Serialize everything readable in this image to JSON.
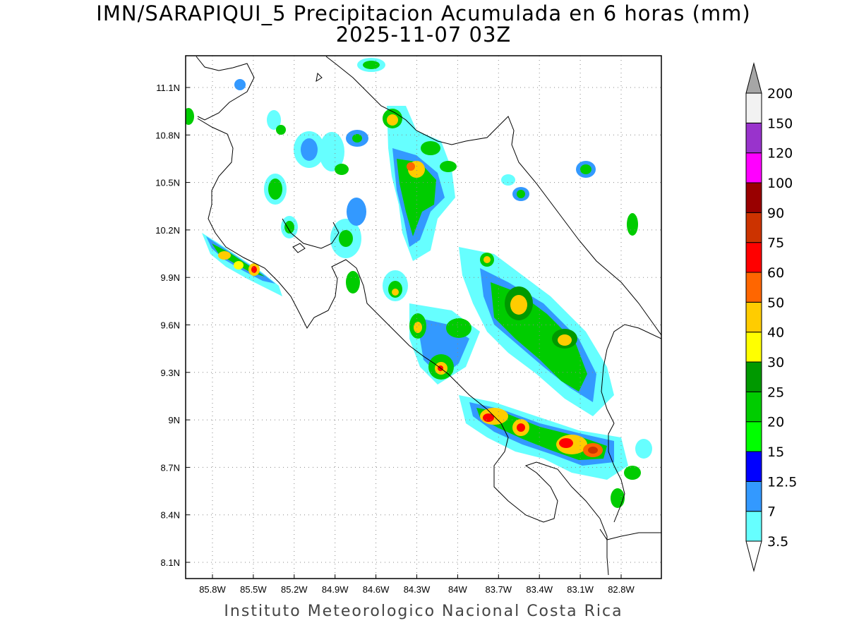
{
  "title": {
    "line1": "IMN/SARAPIQUI_5 Precipitacion Acumulada en 6 horas (mm)",
    "line2": "2025-11-07 03Z"
  },
  "footer": "Instituto Meteorologico Nacional Costa Rica",
  "map": {
    "lon_ticks": [
      "85.8W",
      "85.5W",
      "85.2W",
      "84.9W",
      "84.6W",
      "84.3W",
      "84W",
      "83.7W",
      "83.4W",
      "83.1W",
      "82.8W"
    ],
    "lat_ticks": [
      "11.1N",
      "10.8N",
      "10.5N",
      "10.2N",
      "9.9N",
      "9.6N",
      "9.3N",
      "9N",
      "8.7N",
      "8.4N",
      "8.1N"
    ],
    "grid": "dotted"
  },
  "colorbar": {
    "levels": [
      "3.5",
      "7",
      "12.5",
      "15",
      "20",
      "25",
      "30",
      "40",
      "50",
      "60",
      "75",
      "90",
      "100",
      "120",
      "150",
      "200"
    ],
    "colors": [
      "#ffffff",
      "#66ffff",
      "#3399ff",
      "#0000ff",
      "#00ff00",
      "#00cc00",
      "#009900",
      "#ffff00",
      "#ffcc00",
      "#ff6600",
      "#ff0000",
      "#cc3300",
      "#990000",
      "#ff00ff",
      "#9933cc",
      "#f2f2f2",
      "#a6a6a6"
    ]
  }
}
